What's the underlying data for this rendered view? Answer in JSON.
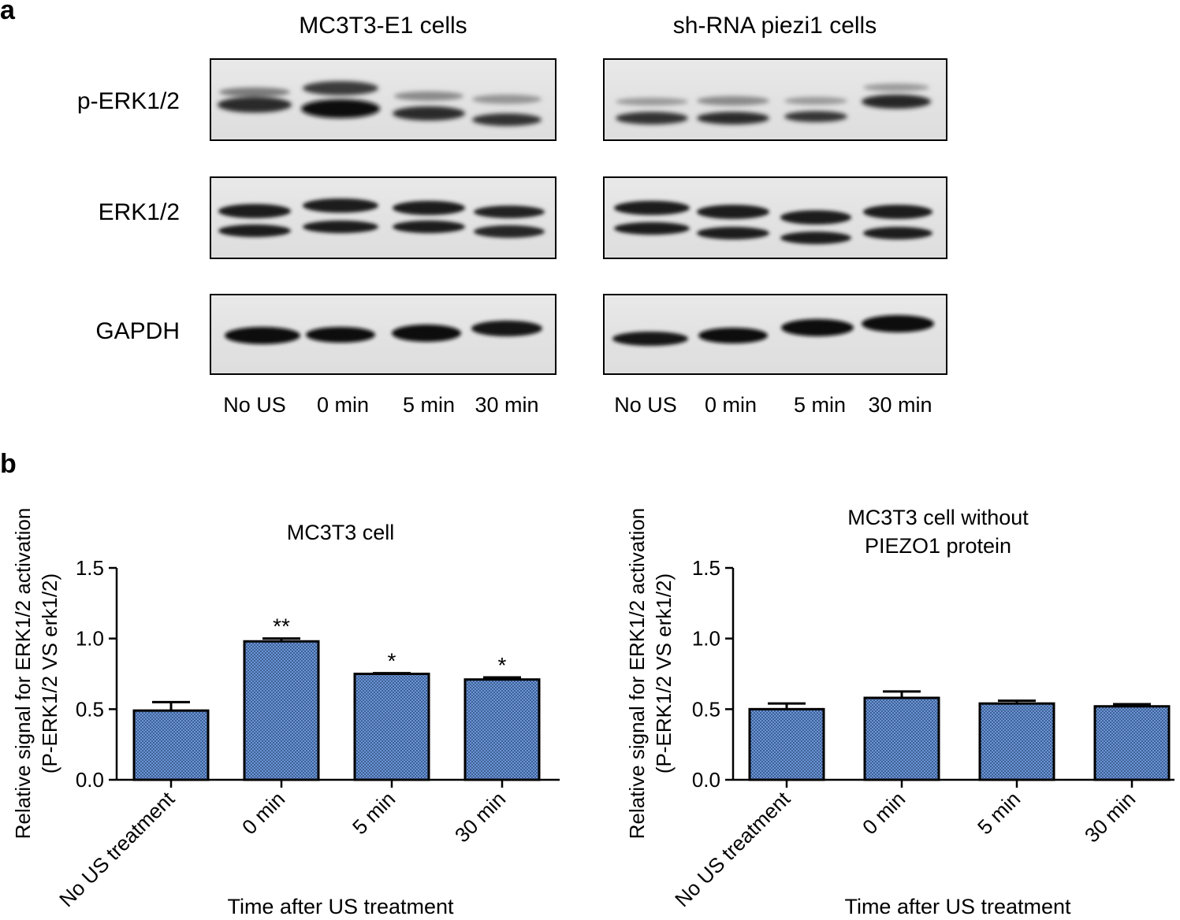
{
  "panel_a": {
    "letter": "a",
    "blots": [
      {
        "title": "MC3T3-E1 cells",
        "lanes": [
          "No US",
          "0 min",
          "5 min",
          "30 min"
        ]
      },
      {
        "title": "sh-RNA piezi1 cells",
        "lanes": [
          "No US",
          "0 min",
          "5 min",
          "30 min"
        ]
      }
    ],
    "row_labels": [
      "p-ERK1/2",
      "ERK1/2",
      "GAPDH"
    ]
  },
  "panel_b": {
    "letter": "b"
  },
  "chart_data": [
    {
      "type": "bar",
      "title": "MC3T3 cell",
      "xlabel": "Time after US treatment",
      "ylabel": "Relative signal for ERK1/2 activation (P-ERK1/2 VS erk1/2)",
      "ylabel_lines": [
        "Relative signal for ERK1/2 activation",
        "(P-ERK1/2 VS erk1/2)"
      ],
      "categories": [
        "No US treatment",
        "0 min",
        "5 min",
        "30 min"
      ],
      "values": [
        0.49,
        0.98,
        0.75,
        0.71
      ],
      "errors": [
        0.06,
        0.02,
        0.005,
        0.015
      ],
      "significance": [
        "",
        "**",
        "*",
        "*"
      ],
      "ylim": [
        0,
        1.5
      ],
      "yticks": [
        "0.0",
        "0.5",
        "1.0",
        "1.5"
      ],
      "bar_color": "#5b86c9",
      "grid": false
    },
    {
      "type": "bar",
      "title": "MC3T3 cell without PIEZO1 protein",
      "title_lines": [
        "MC3T3 cell without",
        "PIEZO1 protein"
      ],
      "xlabel": "Time after US treatment",
      "ylabel": "Relative signal for ERK1/2 activation (P-ERK1/2 VS erk1/2)",
      "ylabel_lines": [
        "Relative signal for ERK1/2 activation",
        "(P-ERK1/2 VS erk1/2)"
      ],
      "categories": [
        "No US treatment",
        "0 min",
        "5 min",
        "30 min"
      ],
      "values": [
        0.5,
        0.58,
        0.54,
        0.52
      ],
      "errors": [
        0.04,
        0.045,
        0.02,
        0.015
      ],
      "significance": [
        "",
        "",
        "",
        ""
      ],
      "ylim": [
        0,
        1.5
      ],
      "yticks": [
        "0.0",
        "0.5",
        "1.0",
        "1.5"
      ],
      "bar_color": "#5b86c9",
      "grid": false
    }
  ]
}
